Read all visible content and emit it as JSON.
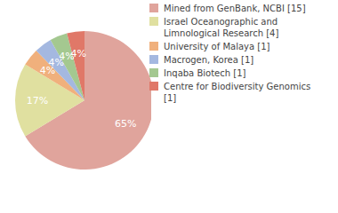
{
  "chart_data": {
    "type": "pie",
    "categories": [
      "Mined from GenBank, NCBI [15]",
      "Israel Oceanographic and Limnological Research [4]",
      "University of Malaya [1]",
      "Macrogen, Korea [1]",
      "Inqaba Biotech [1]",
      "Centre for Biodiversity Genomics [1]"
    ],
    "values": [
      65,
      17,
      4,
      4,
      4,
      4
    ],
    "value_labels": [
      "65%",
      "17%",
      "4%",
      "4%",
      "4%",
      "4%"
    ],
    "colors": [
      "#e0a49c",
      "#e0e0a0",
      "#f0b07c",
      "#a4b8e0",
      "#a4c890",
      "#e07868"
    ],
    "data_labels": true,
    "legend": "right"
  }
}
